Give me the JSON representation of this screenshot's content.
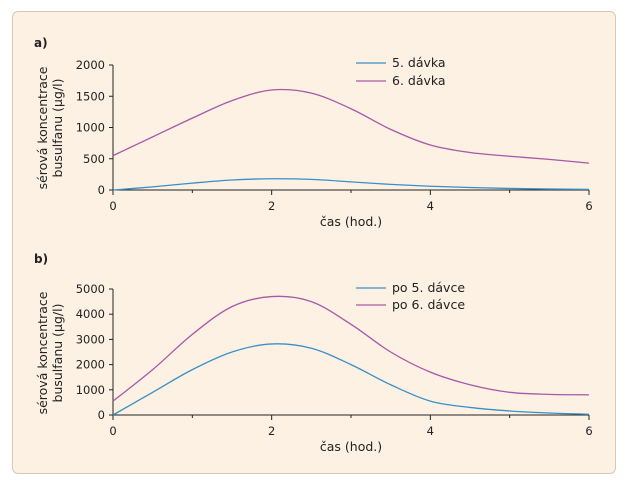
{
  "chart_data": [
    {
      "type": "line",
      "panel_label": "a)",
      "ylabel_line1": "sérová koncentrace",
      "ylabel_line2": "busulfanu (μg/l)",
      "xlabel": "čas (hod.)",
      "xlim": [
        0,
        6
      ],
      "ylim": [
        0,
        2000
      ],
      "x_ticks": [
        0,
        2,
        4,
        6
      ],
      "y_ticks": [
        0,
        500,
        1000,
        1500,
        2000
      ],
      "grid": false,
      "legend_position": "top-right",
      "series": [
        {
          "name": "5. dávka",
          "color": "#3a8fc8",
          "x": [
            0,
            0.5,
            1,
            1.5,
            2,
            2.5,
            3,
            3.5,
            4,
            4.5,
            5,
            5.5,
            6
          ],
          "y": [
            0,
            50,
            110,
            160,
            180,
            170,
            130,
            90,
            60,
            40,
            25,
            15,
            10
          ]
        },
        {
          "name": "6. dávka",
          "color": "#a858a8",
          "x": [
            0,
            0.5,
            1,
            1.5,
            2,
            2.5,
            3,
            3.5,
            4,
            4.5,
            5,
            5.5,
            6
          ],
          "y": [
            550,
            850,
            1150,
            1430,
            1600,
            1550,
            1300,
            970,
            720,
            600,
            540,
            490,
            430
          ]
        }
      ]
    },
    {
      "type": "line",
      "panel_label": "b)",
      "ylabel_line1": "sérová koncentrace",
      "ylabel_line2": "busulfanu (μg/l)",
      "xlabel": "čas (hod.)",
      "xlim": [
        0,
        6
      ],
      "ylim": [
        0,
        5000
      ],
      "x_ticks": [
        0,
        2,
        4,
        6
      ],
      "y_ticks": [
        0,
        1000,
        2000,
        3000,
        4000,
        5000
      ],
      "grid": false,
      "legend_position": "top-right",
      "series": [
        {
          "name": "po 5. dávce",
          "color": "#3a8fc8",
          "x": [
            0,
            0.5,
            1,
            1.5,
            2,
            2.5,
            3,
            3.5,
            4,
            4.5,
            5,
            5.5,
            6
          ],
          "y": [
            0,
            900,
            1800,
            2500,
            2820,
            2650,
            2000,
            1200,
            550,
            300,
            160,
            80,
            30
          ]
        },
        {
          "name": "po 6. dávce",
          "color": "#a858a8",
          "x": [
            0,
            0.5,
            1,
            1.5,
            2,
            2.5,
            3,
            3.5,
            4,
            4.5,
            5,
            5.5,
            6
          ],
          "y": [
            550,
            1800,
            3200,
            4300,
            4700,
            4500,
            3600,
            2500,
            1700,
            1200,
            900,
            820,
            800
          ]
        }
      ]
    }
  ]
}
